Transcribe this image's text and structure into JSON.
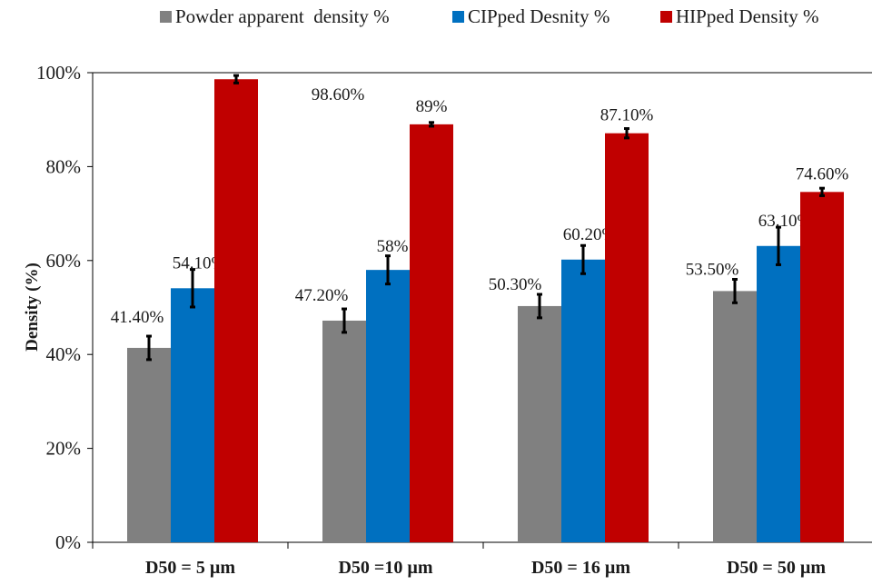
{
  "chart_data": {
    "type": "bar",
    "title": "",
    "xlabel": "",
    "ylabel": "Density (%)",
    "ylim": [
      0,
      100
    ],
    "yticks": [
      "0%",
      "20%",
      "40%",
      "60%",
      "80%",
      "100%"
    ],
    "grid": false,
    "legend_position": "top",
    "categories": [
      "D50 = 5 µm",
      "D50 =10 µm",
      "D50 = 16 µm",
      "D50 = 50 µm"
    ],
    "series": [
      {
        "name": "Powder apparent  density %",
        "color": "#808080",
        "values": [
          41.4,
          47.2,
          50.3,
          53.5
        ],
        "labels": [
          "41.40%",
          "47.20%",
          "50.30%",
          "53.50%"
        ],
        "errors": [
          2.5,
          2.5,
          2.5,
          2.5
        ]
      },
      {
        "name": "CIPped Desnity %",
        "color": "#0070C0",
        "values": [
          54.1,
          58.0,
          60.2,
          63.1
        ],
        "labels": [
          "54.10%",
          "58%",
          "60.20%",
          "63.10%"
        ],
        "errors": [
          4.0,
          3.0,
          3.0,
          4.0
        ]
      },
      {
        "name": "HIPped Density %",
        "color": "#C00000",
        "values": [
          98.6,
          89.0,
          87.1,
          74.6
        ],
        "labels": [
          "98.60%",
          "89%",
          "87.10%",
          "74.60%"
        ],
        "errors": [
          0.8,
          0.4,
          1.0,
          0.8
        ]
      }
    ]
  }
}
